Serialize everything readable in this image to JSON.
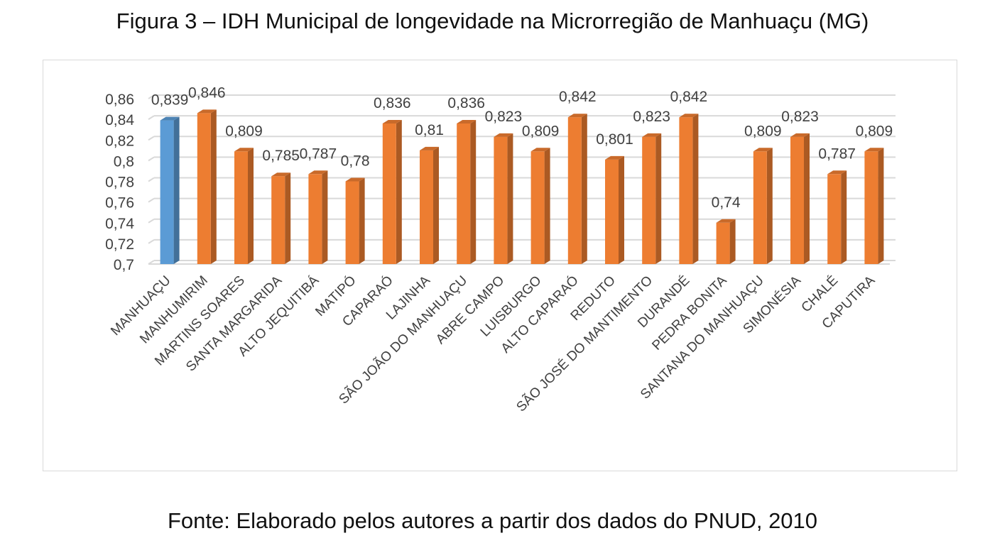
{
  "figure": {
    "title": "Figura 3 – IDH Municipal de longevidade na Microrregião de Manhuaçu (MG)",
    "source": "Fonte: Elaborado pelos autores a partir dos dados do PNUD, 2010"
  },
  "colors": {
    "highlight": "#5b9bd5",
    "bar": "#ed7d31",
    "grid": "#d9d9d9",
    "text": "#404040"
  },
  "chart_data": {
    "type": "bar",
    "title": "",
    "xlabel": "",
    "ylabel": "",
    "ylim": [
      0.7,
      0.86
    ],
    "yticks": [
      0.7,
      0.72,
      0.74,
      0.76,
      0.78,
      0.8,
      0.82,
      0.84,
      0.86
    ],
    "ytick_labels": [
      "0,7",
      "0,72",
      "0,74",
      "0,76",
      "0,78",
      "0,8",
      "0,82",
      "0,84",
      "0,86"
    ],
    "grid": true,
    "style": "3d-column",
    "highlight_index": 0,
    "categories": [
      "MANHUAÇU",
      "MANHUMIRIM",
      "MARTINS SOARES",
      "SANTA MARGARIDA",
      "ALTO JEQUITIBÁ",
      "MATIPÓ",
      "CAPARAÓ",
      "LAJINHA",
      "SÃO JOÃO DO MANHUAÇU",
      "ABRE CAMPO",
      "LUISBURGO",
      "ALTO CAPARAÓ",
      "REDUTO",
      "SÃO JOSÉ DO MANTIMENTO",
      "DURANDÉ",
      "PEDRA BONITA",
      "SANTANA DO MANHUAÇU",
      "SIMONÉSIA",
      "CHALÉ",
      "CAPUTIRA"
    ],
    "values": [
      0.839,
      0.846,
      0.809,
      0.785,
      0.787,
      0.78,
      0.836,
      0.81,
      0.836,
      0.823,
      0.809,
      0.842,
      0.801,
      0.823,
      0.842,
      0.74,
      0.809,
      0.823,
      0.787,
      0.809
    ],
    "value_labels": [
      "0,839",
      "0,846",
      "0,809",
      "0,785",
      "0,787",
      "0,78",
      "0,836",
      "0,81",
      "0,836",
      "0,823",
      "0,809",
      "0,842",
      "0,801",
      "0,823",
      "0,842",
      "0,74",
      "0,809",
      "0,823",
      "0,787",
      "0,809"
    ]
  }
}
